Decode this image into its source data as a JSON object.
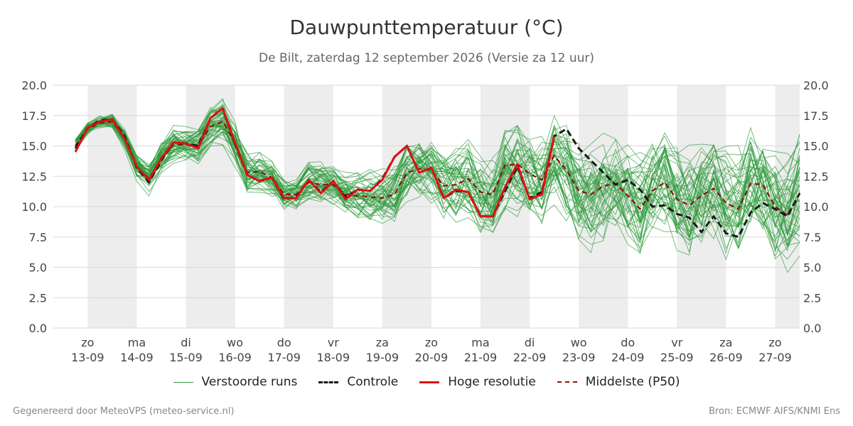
{
  "chart_data": {
    "type": "line",
    "title": "Dauwpunttemperatuur (°C)",
    "subtitle": "De Bilt, zaterdag 12 september 2026 (Versie za 12 uur)",
    "ylim": [
      0,
      20
    ],
    "y_ticks": [
      "0.0",
      "2.5",
      "5.0",
      "7.5",
      "10.0",
      "12.5",
      "15.0",
      "17.5",
      "20.0"
    ],
    "x_unit": "days since 13-09 00:00",
    "xlim": [
      -0.7,
      14.5
    ],
    "x_ticks": [
      {
        "day": "zo",
        "date": "13-09"
      },
      {
        "day": "ma",
        "date": "14-09"
      },
      {
        "day": "di",
        "date": "15-09"
      },
      {
        "day": "wo",
        "date": "16-09"
      },
      {
        "day": "do",
        "date": "17-09"
      },
      {
        "day": "vr",
        "date": "18-09"
      },
      {
        "day": "za",
        "date": "19-09"
      },
      {
        "day": "zo",
        "date": "20-09"
      },
      {
        "day": "ma",
        "date": "21-09"
      },
      {
        "day": "di",
        "date": "22-09"
      },
      {
        "day": "wo",
        "date": "23-09"
      },
      {
        "day": "do",
        "date": "24-09"
      },
      {
        "day": "vr",
        "date": "25-09"
      },
      {
        "day": "za",
        "date": "26-09"
      },
      {
        "day": "zo",
        "date": "27-09"
      }
    ],
    "series": [
      {
        "name": "Controle",
        "color": "#1a1a1a",
        "style": "dashed",
        "x": [
          -0.25,
          0,
          0.25,
          0.5,
          0.75,
          1,
          1.25,
          1.5,
          1.75,
          2,
          2.25,
          2.5,
          2.75,
          3,
          3.25,
          3.5,
          3.75,
          4,
          4.25,
          4.5,
          4.75,
          5,
          5.25,
          5.5,
          5.75,
          6,
          6.25,
          6.5,
          6.75,
          7,
          7.25,
          7.5,
          7.75,
          8,
          8.25,
          8.5,
          8.75,
          9,
          9.25,
          9.5,
          9.75,
          10,
          10.25,
          10.5,
          10.75,
          11,
          11.25,
          11.5,
          11.75,
          12,
          12.25,
          12.5,
          12.75,
          13,
          13.25,
          13.5,
          13.75,
          14,
          14.25,
          14.5
        ],
        "values": [
          14.8,
          16.5,
          17.1,
          17.2,
          15.8,
          13.2,
          12.0,
          13.8,
          15.3,
          15.2,
          15.0,
          17.3,
          18.1,
          15.2,
          12.6,
          12.1,
          12.4,
          10.6,
          10.8,
          12.2,
          11.2,
          12.1,
          10.8,
          11.4,
          11.3,
          12.3,
          14.1,
          15.0,
          12.8,
          13.2,
          10.7,
          11.3,
          11.2,
          9.2,
          9.2,
          11.3,
          13.3,
          10.7,
          11.2,
          15.8,
          16.4,
          14.8,
          13.8,
          12.8,
          11.8,
          12.2,
          11.4,
          10.0,
          10.1,
          9.4,
          9.1,
          7.9,
          9.2,
          7.8,
          7.5,
          9.5,
          10.3,
          9.8,
          9.2,
          11.1
        ]
      },
      {
        "name": "Hoge resolutie",
        "color": "#dd1111",
        "style": "solid",
        "x": [
          -0.25,
          0,
          0.25,
          0.5,
          0.75,
          1,
          1.25,
          1.5,
          1.75,
          2,
          2.25,
          2.5,
          2.75,
          3,
          3.25,
          3.5,
          3.75,
          4,
          4.25,
          4.5,
          4.75,
          5,
          5.25,
          5.5,
          5.75,
          6,
          6.25,
          6.5,
          6.75,
          7,
          7.25,
          7.5,
          7.75,
          8,
          8.25,
          8.5,
          8.75,
          9,
          9.25,
          9.5
        ],
        "values": [
          14.5,
          16.5,
          17.0,
          17.2,
          15.6,
          13.3,
          12.2,
          14.0,
          15.3,
          15.2,
          14.8,
          17.3,
          18.1,
          15.3,
          12.6,
          12.1,
          12.4,
          10.7,
          10.7,
          12.2,
          11.1,
          12.1,
          10.6,
          11.4,
          11.3,
          12.2,
          14.1,
          15.0,
          12.8,
          13.2,
          10.7,
          11.4,
          11.2,
          9.2,
          9.2,
          11.6,
          13.5,
          10.6,
          11.0,
          15.8
        ]
      },
      {
        "name": "Middelste (P50)",
        "color": "#8b1010",
        "style": "dashed",
        "x": [
          -0.25,
          0,
          0.25,
          0.5,
          0.75,
          1,
          1.25,
          1.5,
          1.75,
          2,
          2.25,
          2.5,
          2.75,
          3,
          3.25,
          3.5,
          3.75,
          4,
          4.25,
          4.5,
          4.75,
          5,
          5.25,
          5.5,
          5.75,
          6,
          6.25,
          6.5,
          6.75,
          7,
          7.25,
          7.5,
          7.75,
          8,
          8.25,
          8.5,
          8.75,
          9,
          9.25,
          9.5,
          9.75,
          10,
          10.25,
          10.5,
          10.75,
          11,
          11.25,
          11.5,
          11.75,
          12,
          12.25,
          12.5,
          12.75,
          13,
          13.25,
          13.5,
          13.75,
          14,
          14.25,
          14.5
        ],
        "values": [
          15.0,
          16.4,
          16.9,
          17.0,
          15.6,
          13.3,
          12.3,
          14.0,
          15.1,
          15.1,
          15.0,
          16.6,
          17.0,
          15.2,
          12.8,
          12.9,
          12.4,
          11.0,
          11.0,
          12.0,
          11.8,
          11.8,
          11.0,
          10.9,
          10.8,
          10.7,
          11.0,
          12.8,
          13.1,
          13.0,
          11.7,
          11.8,
          12.3,
          11.2,
          11.0,
          13.4,
          13.5,
          12.7,
          12.2,
          14.2,
          13.0,
          11.3,
          11.0,
          11.7,
          11.9,
          10.9,
          9.8,
          11.3,
          12.0,
          10.6,
          10.1,
          10.9,
          11.5,
          10.3,
          9.8,
          11.9,
          11.8,
          10.0,
          9.3,
          11.1
        ]
      }
    ],
    "ensemble": {
      "name": "Verstoorde runs",
      "color": "#2e9a3a",
      "members": 50,
      "x": [
        -0.25,
        0,
        0.25,
        0.5,
        0.75,
        1,
        1.25,
        1.5,
        1.75,
        2,
        2.25,
        2.5,
        2.75,
        3,
        3.25,
        3.5,
        3.75,
        4,
        4.25,
        4.5,
        4.75,
        5,
        5.25,
        5.5,
        5.75,
        6,
        6.25,
        6.5,
        6.75,
        7,
        7.25,
        7.5,
        7.75,
        8,
        8.25,
        8.5,
        8.75,
        9,
        9.25,
        9.5,
        9.75,
        10,
        10.25,
        10.5,
        10.75,
        11,
        11.25,
        11.5,
        11.75,
        12,
        12.25,
        12.5,
        12.75,
        13,
        13.25,
        13.5,
        13.75,
        14,
        14.25,
        14.5
      ],
      "median": [
        15.0,
        16.4,
        16.9,
        17.0,
        15.6,
        13.3,
        12.3,
        14.0,
        15.1,
        15.1,
        15.0,
        16.6,
        17.0,
        15.2,
        12.8,
        12.9,
        12.4,
        11.0,
        11.0,
        12.0,
        11.8,
        11.8,
        11.0,
        10.9,
        10.8,
        10.7,
        11.0,
        12.8,
        13.1,
        13.0,
        11.7,
        11.8,
        12.3,
        11.2,
        11.0,
        13.4,
        13.5,
        12.7,
        12.2,
        14.2,
        13.0,
        11.3,
        11.0,
        11.7,
        11.9,
        10.9,
        9.8,
        11.3,
        12.0,
        10.6,
        10.1,
        10.9,
        11.5,
        10.3,
        9.8,
        11.9,
        11.8,
        10.0,
        9.3,
        11.1
      ],
      "spread": [
        0.6,
        0.4,
        0.4,
        0.5,
        0.7,
        0.8,
        0.9,
        1.0,
        1.1,
        1.1,
        1.2,
        1.2,
        1.3,
        1.3,
        1.3,
        1.3,
        1.2,
        1.1,
        1.1,
        1.2,
        1.2,
        1.3,
        1.3,
        1.4,
        1.5,
        1.6,
        1.8,
        2.0,
        2.1,
        2.2,
        2.3,
        2.4,
        2.5,
        2.6,
        2.6,
        2.7,
        2.8,
        2.9,
        2.9,
        3.0,
        3.0,
        3.1,
        3.1,
        3.2,
        3.2,
        3.2,
        3.3,
        3.3,
        3.3,
        3.4,
        3.4,
        3.4,
        3.4,
        3.5,
        3.5,
        3.5,
        3.5,
        3.6,
        3.6,
        3.6
      ]
    },
    "weekend_bands": [
      {
        "from": 0,
        "to": 1
      },
      {
        "from": 2,
        "to": 3
      },
      {
        "from": 4,
        "to": 5
      },
      {
        "from": 6,
        "to": 7
      },
      {
        "from": 8,
        "to": 9
      },
      {
        "from": 10,
        "to": 11
      },
      {
        "from": 12,
        "to": 13
      },
      {
        "from": 14,
        "to": 14.5
      }
    ],
    "grid": true,
    "legend_position": "bottom"
  },
  "legend": {
    "ensemble_label": "Verstoorde runs",
    "control_label": "Controle",
    "hires_label": "Hoge resolutie",
    "median_label": "Middelste (P50)"
  },
  "footer": {
    "left": "Gegenereerd door MeteoVPS (meteo-service.nl)",
    "right": "Bron: ECMWF AIFS/KNMI Ens"
  }
}
